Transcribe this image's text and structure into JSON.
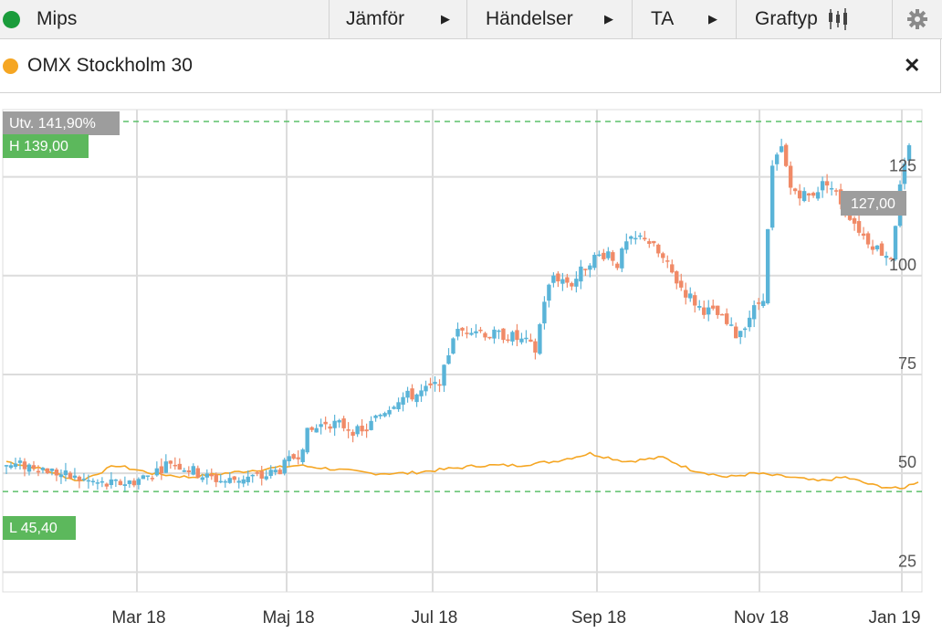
{
  "toolbar": {
    "instrument": "Mips",
    "instrument_color": "#1a9c3b",
    "compare_label": "Jämför",
    "events_label": "Händelser",
    "ta_label": "TA",
    "charttype_label": "Graftyp"
  },
  "legend": {
    "series_name": "OMX Stockholm 30",
    "series_color": "#f5a623"
  },
  "badges": {
    "change": "Utv. 141,90%",
    "high": "H 139,00",
    "low": "L 45,40",
    "last": "127,00"
  },
  "colors": {
    "up": "#5ab4d8",
    "down": "#f08a67",
    "index": "#f5a623",
    "ref_line": "#5cc06a",
    "badge_green": "#5cb85c",
    "badge_grey": "#9d9d9d"
  },
  "chart_data": {
    "type": "candlestick",
    "x_labels": [
      "Mar 18",
      "Maj 18",
      "Jul 18",
      "Sep 18",
      "Nov 18",
      "Jan 19"
    ],
    "y_ticks": [
      25,
      50,
      75,
      100,
      125
    ],
    "ylim": [
      20,
      142
    ],
    "high": 139.0,
    "low": 45.4,
    "last": 127.0,
    "change_pct": "141,90%",
    "price_path": [
      [
        0,
        52
      ],
      [
        6,
        52
      ],
      [
        14,
        49
      ],
      [
        22,
        47
      ],
      [
        28,
        48
      ],
      [
        32,
        50
      ],
      [
        36,
        53
      ],
      [
        40,
        51
      ],
      [
        44,
        49
      ],
      [
        48,
        48
      ],
      [
        52,
        49
      ],
      [
        56,
        49
      ],
      [
        60,
        51
      ],
      [
        64,
        55
      ],
      [
        66,
        60
      ],
      [
        70,
        63
      ],
      [
        74,
        62
      ],
      [
        78,
        60
      ],
      [
        82,
        65
      ],
      [
        86,
        69
      ],
      [
        90,
        70
      ],
      [
        94,
        72
      ],
      [
        96,
        76
      ],
      [
        98,
        85
      ],
      [
        102,
        87
      ],
      [
        106,
        85
      ],
      [
        110,
        85
      ],
      [
        114,
        83
      ],
      [
        116,
        81
      ],
      [
        118,
        94
      ],
      [
        120,
        100
      ],
      [
        124,
        98
      ],
      [
        128,
        104
      ],
      [
        132,
        106
      ],
      [
        134,
        103
      ],
      [
        136,
        108
      ],
      [
        140,
        110
      ],
      [
        144,
        104
      ],
      [
        148,
        97
      ],
      [
        152,
        92
      ],
      [
        156,
        90
      ],
      [
        160,
        85
      ],
      [
        162,
        88
      ],
      [
        166,
        95
      ],
      [
        168,
        127
      ],
      [
        170,
        132
      ],
      [
        172,
        122
      ],
      [
        176,
        120
      ],
      [
        180,
        124
      ],
      [
        184,
        117
      ],
      [
        188,
        110
      ],
      [
        192,
        106
      ],
      [
        194,
        105
      ],
      [
        196,
        122
      ],
      [
        198,
        132
      ]
    ],
    "index_path": [
      [
        0,
        53
      ],
      [
        8,
        51
      ],
      [
        16,
        48
      ],
      [
        24,
        52
      ],
      [
        32,
        50
      ],
      [
        40,
        49
      ],
      [
        48,
        50
      ],
      [
        56,
        51
      ],
      [
        64,
        52
      ],
      [
        72,
        51
      ],
      [
        80,
        50
      ],
      [
        88,
        50
      ],
      [
        96,
        51
      ],
      [
        104,
        52
      ],
      [
        112,
        52
      ],
      [
        120,
        53
      ],
      [
        128,
        55
      ],
      [
        136,
        53
      ],
      [
        144,
        54
      ],
      [
        150,
        51
      ],
      [
        158,
        49
      ],
      [
        164,
        50
      ],
      [
        172,
        49
      ],
      [
        178,
        48
      ],
      [
        184,
        49
      ],
      [
        190,
        47
      ],
      [
        196,
        46
      ],
      [
        200,
        48
      ]
    ]
  }
}
